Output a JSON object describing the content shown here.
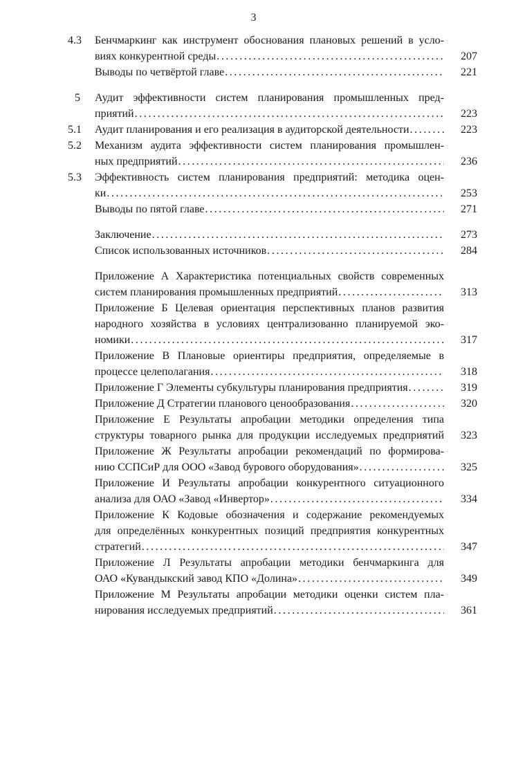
{
  "page": {
    "number": "3"
  },
  "colors": {
    "text": "#1a1a1a",
    "background": "#ffffff"
  },
  "toc": {
    "rows": [
      {
        "num": "4.3",
        "text": "Бенчмаркинг как инструмент обоснования плановых решений в усло-",
        "justify": true
      },
      {
        "text": "виях конкурентной среды",
        "dots": true,
        "page": "207"
      },
      {
        "text": "Выводы по четвёртой главе",
        "dots": true,
        "page": "221"
      },
      {
        "num": "5",
        "text": "Аудит эффективности систем планирования промышленных пред-",
        "justify": true,
        "gap_before": true
      },
      {
        "text": "приятий",
        "dots": true,
        "page": "223"
      },
      {
        "num": "5.1",
        "text": "Аудит планирования и его реализация в аудиторской деятельности",
        "dots": true,
        "page": "223"
      },
      {
        "num": "5.2",
        "text": "Механизм аудита эффективности систем планирования промышлен-",
        "justify": true
      },
      {
        "text": "ных предприятий",
        "dots": true,
        "page": "236"
      },
      {
        "num": "5.3",
        "text": "Эффективность систем планирования предприятий: методика оцен-",
        "justify": true
      },
      {
        "text": "ки",
        "dots": true,
        "page": "253"
      },
      {
        "text": "Выводы по пятой главе",
        "dots": true,
        "page": "271"
      },
      {
        "text": "Заключение",
        "dots": true,
        "page": "273",
        "gap_before": true
      },
      {
        "text": "Список использованных источников",
        "dots": true,
        "page": "284"
      },
      {
        "text": "Приложение А Характеристика потенциальных свойств современных",
        "justify": true,
        "gap_before": true
      },
      {
        "text": "систем планирования промышленных предприятий",
        "dots": true,
        "page": "313"
      },
      {
        "text": "Приложение Б Целевая ориентация перспективных планов развития",
        "justify": true
      },
      {
        "text": "народного хозяйства в условиях централизованно планируемой эко-",
        "justify": true
      },
      {
        "text": "номики",
        "dots": true,
        "page": "317"
      },
      {
        "text": "Приложение В Плановые ориентиры предприятия, определяемые в",
        "justify": true
      },
      {
        "text": "процессе целеполагания",
        "dots": true,
        "page": "318"
      },
      {
        "text": "Приложение Г Элементы субкультуры планирования предприятия",
        "dots": true,
        "page": "319"
      },
      {
        "text": "Приложение Д Стратегии планового ценообразования",
        "dots": true,
        "page": "320"
      },
      {
        "text": "Приложение Е Результаты апробации методики определения типа",
        "justify": true
      },
      {
        "text": "структуры товарного рынка для продукции исследуемых предприятий",
        "justify": true,
        "page": "323"
      },
      {
        "text": "Приложение Ж Результаты апробации рекомендаций по формирова-",
        "justify": true
      },
      {
        "text": "нию ССПСиР для ООО «Завод бурового оборудования»",
        "dots": true,
        "page": "325"
      },
      {
        "text": "Приложение И Результаты апробации конкурентного ситуационного",
        "justify": true
      },
      {
        "text": "анализа для ОАО «Завод «Инвертор»",
        "dots": true,
        "page": "334"
      },
      {
        "text": "Приложение К Кодовые обозначения и содержание рекомендуемых",
        "justify": true
      },
      {
        "text": "для определённых конкурентных позиций предприятия конкурентных",
        "justify": true
      },
      {
        "text": "стратегий",
        "dots": true,
        "page": "347"
      },
      {
        "text": "Приложение Л Результаты апробации методики бенчмаркинга для",
        "justify": true
      },
      {
        "text": "ОАО «Кувандыкский завод КПО «Долина»",
        "dots": true,
        "page": "349"
      },
      {
        "text": "Приложение М Результаты апробации методики оценки систем пла-",
        "justify": true
      },
      {
        "text": "нирования исследуемых предприятий",
        "dots": true,
        "page": "361"
      }
    ]
  }
}
